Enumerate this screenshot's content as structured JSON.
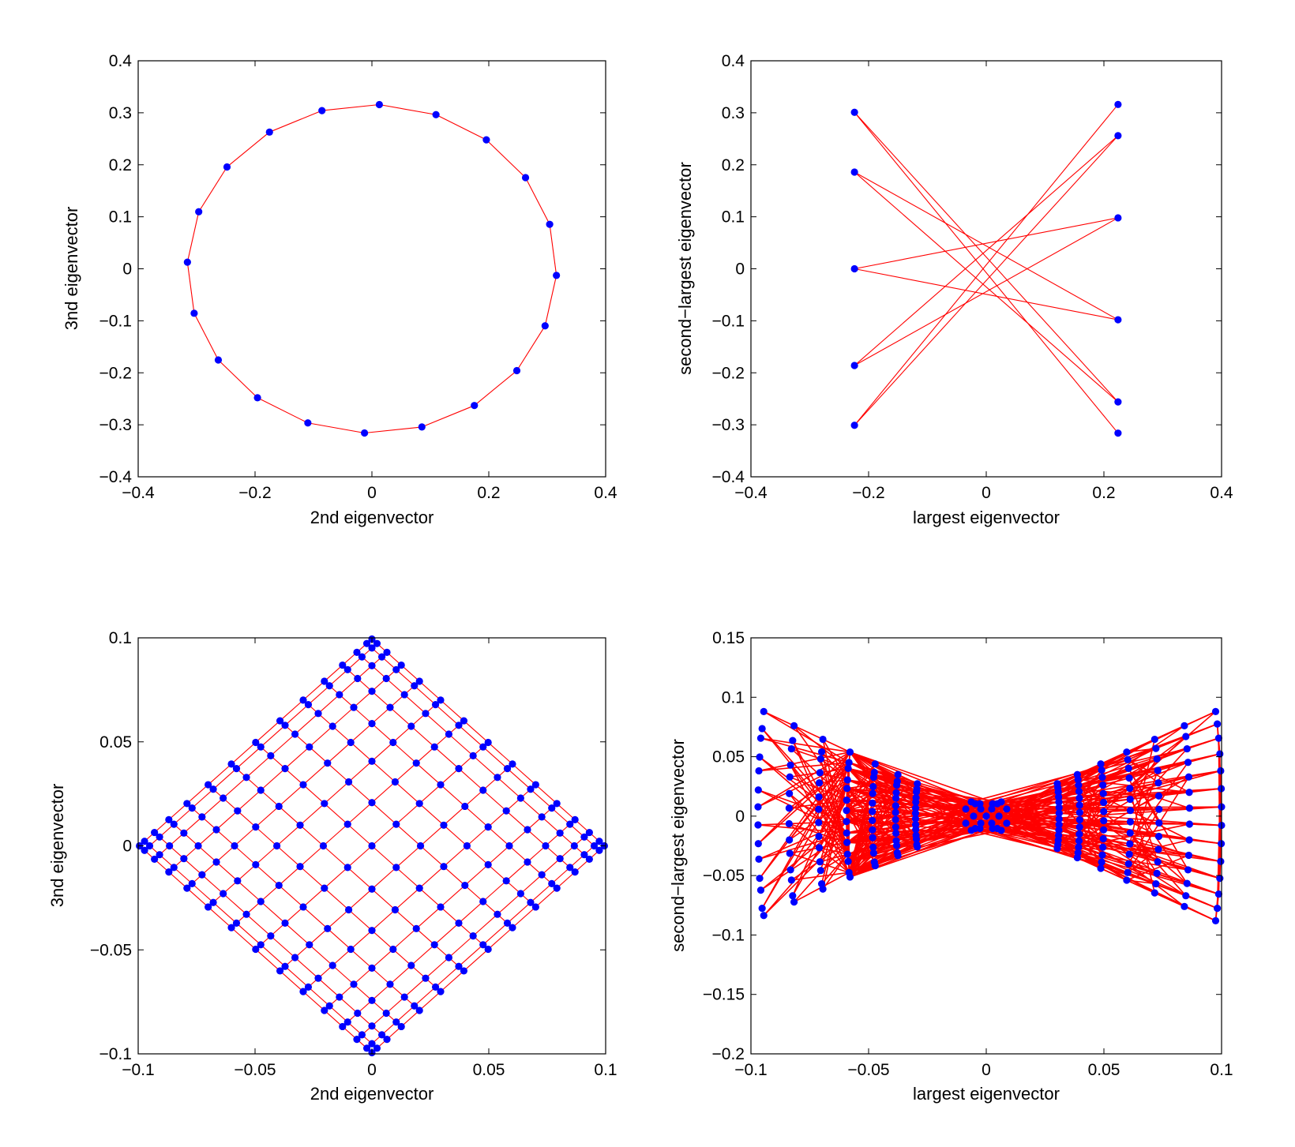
{
  "colors": {
    "line": "#ff0000",
    "marker": "#0000ff",
    "axes": "#000000",
    "background": "#ffffff"
  },
  "chart_data": [
    {
      "type": "line",
      "subtype": "graph-embedding",
      "xlabel": "2nd eigenvector",
      "ylabel": "3nd eigenvector",
      "xlim": [
        -0.4,
        0.4
      ],
      "ylim": [
        -0.4,
        0.4
      ],
      "xticks": [
        -0.4,
        -0.2,
        0,
        0.2,
        0.4
      ],
      "xtick_labels": [
        "−0.4",
        "−0.2",
        "0",
        "0.2",
        "0.4"
      ],
      "yticks": [
        -0.4,
        -0.3,
        -0.2,
        -0.1,
        0,
        0.1,
        0.2,
        0.3,
        0.4
      ],
      "ytick_labels": [
        "−0.4",
        "−0.3",
        "−0.2",
        "−0.1",
        "0",
        "0.1",
        "0.2",
        "0.3",
        "0.4"
      ],
      "grid": false,
      "shape": "ring",
      "ring": {
        "n": 20,
        "radius": 0.316,
        "start_deg": 87.7
      }
    },
    {
      "type": "line",
      "subtype": "graph-embedding",
      "xlabel": "largest eigenvector",
      "ylabel": "second−largest eigenvector",
      "xlim": [
        -0.4,
        0.4
      ],
      "ylim": [
        -0.4,
        0.4
      ],
      "xticks": [
        -0.4,
        -0.2,
        0,
        0.2,
        0.4
      ],
      "xtick_labels": [
        "−0.4",
        "−0.2",
        "0",
        "0.2",
        "0.4"
      ],
      "yticks": [
        -0.4,
        -0.3,
        -0.2,
        -0.1,
        0,
        0.1,
        0.2,
        0.3,
        0.4
      ],
      "ytick_labels": [
        "−0.4",
        "−0.3",
        "−0.2",
        "−0.1",
        "0",
        "0.1",
        "0.2",
        "0.3",
        "0.4"
      ],
      "grid": false,
      "shape": "bipartite",
      "left_nodes": {
        "x": -0.224,
        "y": [
          0.301,
          0.186,
          0.0,
          -0.186,
          -0.301
        ]
      },
      "right_nodes": {
        "x": 0.224,
        "y": [
          0.316,
          0.256,
          0.098,
          -0.098,
          -0.256,
          -0.316
        ]
      },
      "edges": [
        [
          0,
          4
        ],
        [
          0,
          5
        ],
        [
          1,
          4
        ],
        [
          1,
          3
        ],
        [
          2,
          2
        ],
        [
          2,
          3
        ],
        [
          3,
          1
        ],
        [
          3,
          2
        ],
        [
          4,
          0
        ],
        [
          4,
          1
        ]
      ]
    },
    {
      "type": "line",
      "subtype": "graph-embedding",
      "xlabel": "2nd eigenvector",
      "ylabel": "3nd eigenvector",
      "xlim": [
        -0.1,
        0.1
      ],
      "ylim": [
        -0.1,
        0.1
      ],
      "xticks": [
        -0.1,
        -0.05,
        0,
        0.05,
        0.1
      ],
      "xtick_labels": [
        "−0.1",
        "−0.05",
        "0",
        "0.05",
        "0.1"
      ],
      "yticks": [
        -0.1,
        -0.05,
        0,
        0.05,
        0.1
      ],
      "ytick_labels": [
        "−0.1",
        "−0.05",
        "0",
        "0.05",
        "0.1"
      ],
      "grid": false,
      "shape": "grid",
      "grid_graph": {
        "n": 15,
        "half_width": 0.1
      }
    },
    {
      "type": "line",
      "subtype": "graph-embedding",
      "xlabel": "largest eigenvector",
      "ylabel": "second−largest eigenvector",
      "xlim": [
        -0.1,
        0.1
      ],
      "ylim": [
        -0.2,
        0.15
      ],
      "xticks": [
        -0.1,
        -0.05,
        0,
        0.05,
        0.1
      ],
      "xtick_labels": [
        "−0.1",
        "−0.05",
        "0",
        "0.05",
        "0.1"
      ],
      "yticks": [
        -0.2,
        -0.15,
        -0.1,
        -0.05,
        0,
        0.05,
        0.1,
        0.15
      ],
      "ytick_labels": [
        "−0.2",
        "−0.15",
        "−0.1",
        "−0.05",
        "0",
        "0.05",
        "0.1",
        "0.15"
      ],
      "grid": false,
      "shape": "bipartite-grid",
      "spokes": {
        "count": 14,
        "max_x": 0.1,
        "max_y": 0.107,
        "steps": 7
      }
    }
  ]
}
